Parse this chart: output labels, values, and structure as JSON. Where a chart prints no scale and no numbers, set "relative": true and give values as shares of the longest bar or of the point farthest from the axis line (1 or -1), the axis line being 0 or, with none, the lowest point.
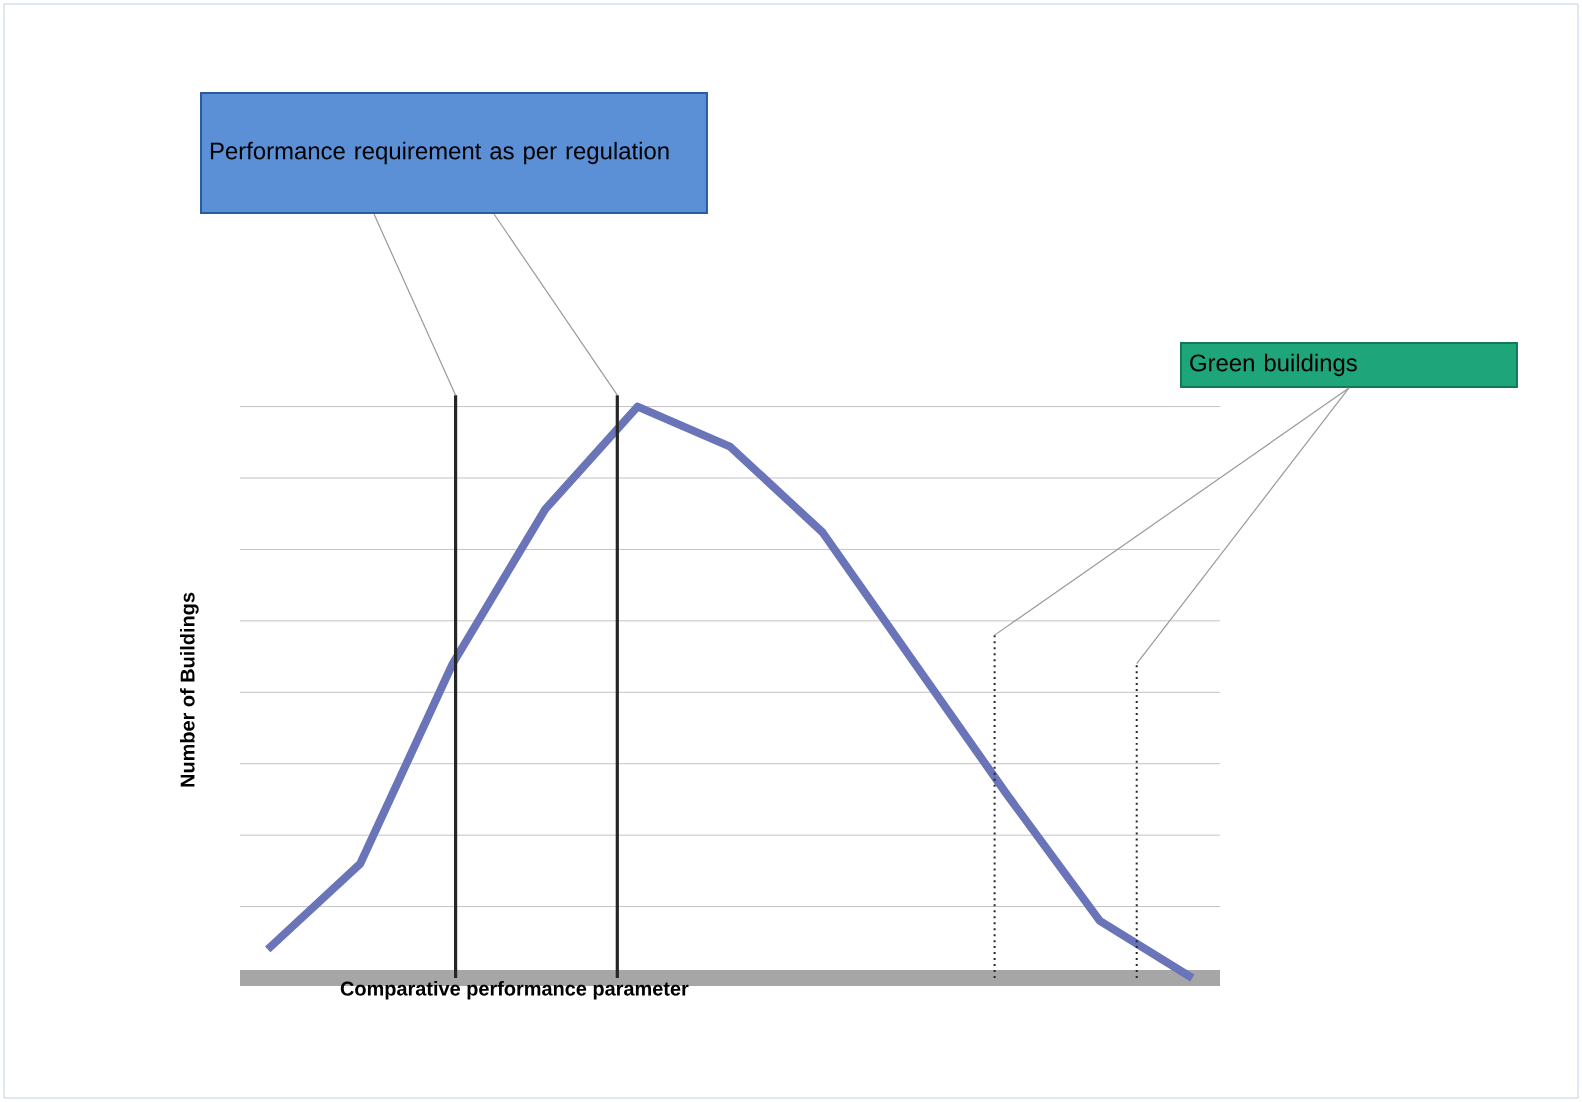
{
  "chart_data": {
    "type": "line",
    "relative": true,
    "xlabel": "Comparative performance parameter",
    "ylabel": "Number of Buildings",
    "categories": [
      null,
      null,
      null,
      null,
      null,
      null,
      null,
      null,
      null,
      null,
      null
    ],
    "series": [
      {
        "color": "#6a74b8",
        "values": [
          0.05,
          0.2,
          0.55,
          0.82,
          1.0,
          0.93,
          0.78,
          0.55,
          0.32,
          0.1,
          0.0
        ]
      }
    ],
    "annotations": [
      "Performance requirement as per regulation",
      "Green buildings"
    ],
    "grid": "y",
    "marker": "none",
    "line_style": "solid"
  }
}
